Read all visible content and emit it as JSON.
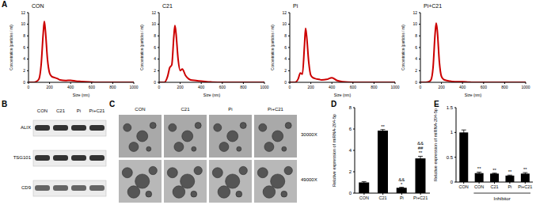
{
  "panel_labels": [
    "A",
    "B",
    "C",
    "D",
    "E"
  ],
  "chart_data": [
    {
      "type": "line",
      "title": "CON",
      "x_label": "Size (nm)",
      "y_label": "Concentration (particles / ml)",
      "x": [
        0,
        50,
        80,
        100,
        120,
        140,
        150,
        160,
        180,
        200,
        220,
        250,
        280,
        300,
        350,
        400,
        450,
        500,
        600,
        700,
        800,
        900,
        1000
      ],
      "values": [
        0,
        0,
        0.2,
        0.6,
        3,
        8.5,
        10.5,
        9,
        4,
        1.6,
        1,
        0.8,
        0.6,
        0.4,
        0.3,
        0.35,
        0.2,
        0.15,
        0.05,
        0,
        0,
        0,
        0
      ],
      "color": "#cc0000",
      "xlim": [
        0,
        1000
      ],
      "xticks": [
        0,
        200,
        400,
        600,
        800,
        1000
      ],
      "ylim": [
        0,
        12
      ],
      "yticks": [
        0,
        2,
        4,
        6,
        8,
        10,
        12
      ]
    },
    {
      "type": "line",
      "title": "C21",
      "x_label": "Size (nm)",
      "y_label": "Concentration (particles / ml)",
      "x": [
        0,
        50,
        80,
        100,
        120,
        140,
        150,
        160,
        180,
        200,
        220,
        250,
        280,
        300,
        350,
        400,
        450,
        500,
        600,
        700,
        800,
        900,
        1000
      ],
      "values": [
        0,
        0,
        1,
        2.5,
        3,
        8,
        9.8,
        8.5,
        4,
        2,
        2.3,
        1.2,
        0.6,
        0.4,
        0.3,
        0.2,
        0.1,
        0.05,
        0,
        0,
        0,
        0,
        0
      ],
      "color": "#cc0000",
      "xlim": [
        0,
        1000
      ],
      "xticks": [
        0,
        200,
        400,
        600,
        800,
        1000
      ],
      "ylim": [
        0,
        12
      ],
      "yticks": [
        0,
        2,
        4,
        6,
        8,
        10,
        12
      ]
    },
    {
      "type": "line",
      "title": "Pi",
      "x_label": "Size (nm)",
      "y_label": "Concentration (particles / ml)",
      "x": [
        0,
        50,
        80,
        100,
        120,
        140,
        150,
        160,
        180,
        200,
        220,
        250,
        280,
        300,
        350,
        400,
        450,
        500,
        600,
        700,
        800,
        900,
        1000
      ],
      "values": [
        0,
        0,
        0.6,
        1.6,
        1.4,
        6.5,
        9.3,
        8,
        3.5,
        1.2,
        0.8,
        0.6,
        0.5,
        0.4,
        0.5,
        0.8,
        0.3,
        0.1,
        0,
        0,
        0,
        0,
        0
      ],
      "color": "#cc0000",
      "xlim": [
        0,
        1000
      ],
      "xticks": [
        0,
        200,
        400,
        600,
        800,
        1000
      ],
      "ylim": [
        0,
        12
      ],
      "yticks": [
        0,
        2,
        4,
        6,
        8,
        10,
        12
      ]
    },
    {
      "type": "line",
      "title": "Pi+C21",
      "x_label": "Size (nm)",
      "y_label": "Concentration (particles / ml)",
      "x": [
        0,
        50,
        80,
        100,
        120,
        140,
        150,
        160,
        180,
        200,
        220,
        250,
        280,
        300,
        350,
        400,
        450,
        500,
        600,
        700,
        800,
        900,
        1000
      ],
      "values": [
        0,
        0,
        0.1,
        0.4,
        2.5,
        8.5,
        10.2,
        9,
        3.5,
        1,
        0.5,
        0.3,
        0.2,
        0.15,
        0.1,
        0.1,
        0.05,
        0,
        0,
        0,
        0,
        0,
        0
      ],
      "color": "#cc0000",
      "xlim": [
        0,
        1000
      ],
      "xticks": [
        0,
        200,
        400,
        600,
        800,
        1000
      ],
      "ylim": [
        0,
        12
      ],
      "yticks": [
        0,
        2,
        4,
        6,
        8,
        10,
        12
      ]
    },
    {
      "type": "bar",
      "y_label": "Relative expression of miRNA-204-5p",
      "categories": [
        "CON",
        "C21",
        "Pi",
        "Pi+C21"
      ],
      "values": [
        1,
        5.85,
        0.5,
        3.25
      ],
      "errors": [
        0.08,
        0.1,
        0.05,
        0.2
      ],
      "annotations": [
        [],
        [
          "**"
        ],
        [
          "&&",
          "*"
        ],
        [
          "&&",
          "##",
          "**"
        ]
      ],
      "color": "#000000",
      "ylim": [
        0,
        8
      ],
      "yticks": [
        0,
        2,
        4,
        6,
        8
      ]
    },
    {
      "type": "bar",
      "y_label": "Relative expression of miRNA-204-5p",
      "categories": [
        "CON",
        "CON",
        "C21",
        "Pi",
        "Pi+C21"
      ],
      "values": [
        1,
        0.18,
        0.17,
        0.13,
        0.17
      ],
      "errors": [
        0.05,
        0.02,
        0.01,
        0.01,
        0.02
      ],
      "annotations": [
        [],
        [
          "**"
        ],
        [
          "**"
        ],
        [
          "**"
        ],
        [
          "**"
        ]
      ],
      "group": {
        "label": "Inhibitor",
        "members": [
          1,
          2,
          3,
          4
        ]
      },
      "color": "#000000",
      "ylim": [
        0,
        1.5
      ],
      "yticks": [
        0,
        0.5,
        1,
        1.5
      ]
    }
  ],
  "blot": {
    "columns": [
      "CON",
      "C21",
      "Pi",
      "Pi+C21"
    ],
    "rows": [
      "ALIX",
      "TSG101",
      "CD9"
    ]
  },
  "tem": {
    "columns": [
      "CON",
      "C21",
      "Pi",
      "Pi+C21"
    ],
    "rows": [
      "30000X",
      "49000X"
    ]
  }
}
